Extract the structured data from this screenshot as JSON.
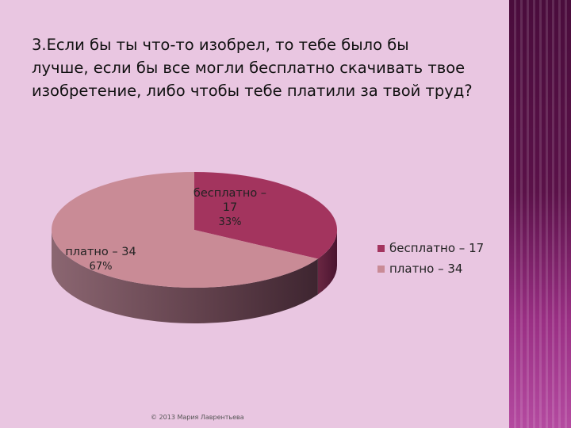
{
  "slide": {
    "title": "3.Если бы ты что-то изобрел,  то тебе было бы\nлучше, если бы все могли бесплатно скачивать твое\nизобретение, либо чтобы тебе платили за твой труд?",
    "footer": "© 2013 Мария Лаврентьева"
  },
  "colors": {
    "background": "#e9c6e1",
    "sidebar": "#5b1149"
  },
  "chart_data": {
    "type": "pie",
    "style": "3d",
    "categories": [
      "бесплатно",
      "платно"
    ],
    "values": [
      17,
      34
    ],
    "percents": [
      "33%",
      "67%"
    ],
    "data_labels": [
      {
        "name_lines": [
          "бесплатно –",
          "17"
        ],
        "percent": "33%"
      },
      {
        "name_lines": [
          "платно – 34"
        ],
        "percent": "67%"
      }
    ],
    "legend": [
      "бесплатно – 17",
      "платно – 34"
    ],
    "legend_position": "right",
    "colors": [
      "#a3345e",
      "#c98b96"
    ],
    "side_colors": [
      "#5a1b35",
      "#5a3a45"
    ]
  }
}
